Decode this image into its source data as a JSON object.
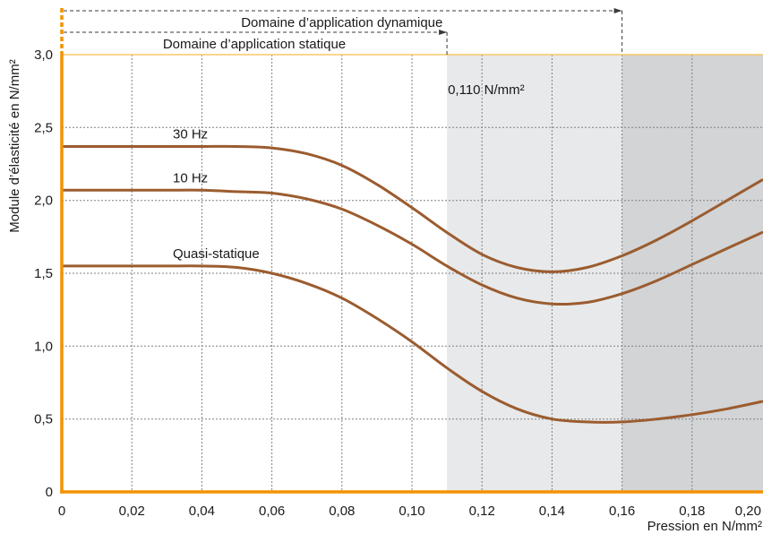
{
  "chart_data": {
    "type": "line",
    "xlabel": "Pression en N/mm²",
    "ylabel": "Module d’élasticité en N/mm²",
    "xlim": [
      0,
      0.2
    ],
    "ylim": [
      0,
      3.0
    ],
    "xticks": [
      0,
      0.02,
      0.04,
      0.06,
      0.08,
      0.1,
      0.12,
      0.14,
      0.16,
      0.18,
      0.2
    ],
    "xtick_labels": [
      "0",
      "0,02",
      "0,04",
      "0,06",
      "0,08",
      "0,10",
      "0,12",
      "0,14",
      "0,16",
      "0,18",
      "0,20"
    ],
    "yticks": [
      0,
      0.5,
      1.0,
      1.5,
      2.0,
      2.5,
      3.0
    ],
    "ytick_labels": [
      "0",
      "0,5",
      "1,0",
      "1,5",
      "2,0",
      "2,5",
      "3,0"
    ],
    "grid": true,
    "x": [
      0,
      0.01,
      0.02,
      0.03,
      0.04,
      0.05,
      0.06,
      0.07,
      0.08,
      0.09,
      0.1,
      0.11,
      0.12,
      0.13,
      0.14,
      0.15,
      0.16,
      0.17,
      0.18,
      0.19,
      0.2
    ],
    "series": [
      {
        "name": "30 Hz",
        "values": [
          2.37,
          2.37,
          2.37,
          2.37,
          2.37,
          2.37,
          2.36,
          2.32,
          2.24,
          2.11,
          1.95,
          1.78,
          1.63,
          1.54,
          1.51,
          1.54,
          1.62,
          1.73,
          1.86,
          2.0,
          2.14
        ]
      },
      {
        "name": "10 Hz",
        "values": [
          2.07,
          2.07,
          2.07,
          2.07,
          2.07,
          2.06,
          2.05,
          2.01,
          1.94,
          1.83,
          1.7,
          1.55,
          1.42,
          1.33,
          1.29,
          1.3,
          1.36,
          1.45,
          1.56,
          1.67,
          1.78
        ]
      },
      {
        "name": "Quasi-statique",
        "values": [
          1.55,
          1.55,
          1.55,
          1.55,
          1.55,
          1.54,
          1.5,
          1.43,
          1.33,
          1.19,
          1.03,
          0.85,
          0.69,
          0.57,
          0.5,
          0.48,
          0.48,
          0.5,
          0.53,
          0.57,
          0.62
        ]
      }
    ],
    "shaded_regions": [
      {
        "from": 0.11,
        "to": 0.16,
        "color": "#e8e9ea"
      },
      {
        "from": 0.16,
        "to": 0.2,
        "color": "#d2d4d6"
      }
    ],
    "ranges": [
      {
        "label": "Domaine d’application dynamique",
        "from": 0,
        "to": 0.16
      },
      {
        "label": "Domaine d’application statique",
        "from": 0,
        "to": 0.11
      }
    ],
    "annotations": [
      {
        "text": "0,110 N/mm²",
        "x": 0.11
      }
    ],
    "colors": {
      "series": "#9b5c2f",
      "axis": "#f39200",
      "top_line": "#f6c769",
      "grid": "#808080",
      "range": "#3a3a3a",
      "text": "#1a1a1a"
    }
  }
}
